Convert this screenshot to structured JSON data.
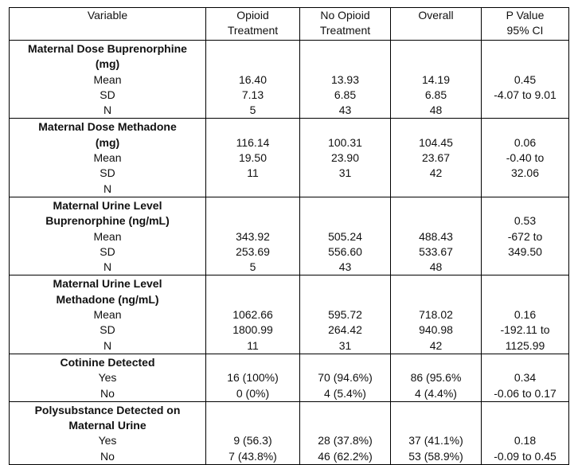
{
  "header": {
    "variable": "Variable",
    "opioid": [
      "Opioid",
      "Treatment"
    ],
    "no_opioid": [
      "No Opioid",
      "Treatment"
    ],
    "overall": [
      "Overall"
    ],
    "pvalue": [
      "P Value",
      "95% CI"
    ]
  },
  "groups": [
    {
      "title": [
        "Maternal Dose Buprenorphine",
        "(mg)"
      ],
      "labels": [
        "",
        "",
        "Mean",
        "SD",
        "N"
      ],
      "opioid": [
        "",
        "",
        "16.40",
        "7.13",
        "5"
      ],
      "no_opioid": [
        "",
        "",
        "13.93",
        "6.85",
        "43"
      ],
      "overall": [
        "",
        "",
        "14.19",
        "6.85",
        "48"
      ],
      "pvalue": [
        "",
        "",
        "0.45",
        "-4.07 to 9.01",
        ""
      ]
    },
    {
      "title": [
        "Maternal Dose Methadone",
        "(mg)"
      ],
      "labels": [
        "",
        "",
        "Mean",
        "SD",
        "N"
      ],
      "opioid": [
        "",
        "116.14",
        "19.50",
        "11",
        ""
      ],
      "no_opioid": [
        "",
        "100.31",
        "23.90",
        "31",
        ""
      ],
      "overall": [
        "",
        "104.45",
        "23.67",
        "42",
        ""
      ],
      "pvalue": [
        "",
        "0.06",
        "-0.40 to",
        "32.06",
        ""
      ]
    },
    {
      "title": [
        "Maternal Urine Level",
        "Buprenorphine (ng/mL)"
      ],
      "labels": [
        "",
        "",
        "Mean",
        "SD",
        "N"
      ],
      "opioid": [
        "",
        "",
        "343.92",
        "253.69",
        "5"
      ],
      "no_opioid": [
        "",
        "",
        "505.24",
        "556.60",
        "43"
      ],
      "overall": [
        "",
        "",
        "488.43",
        "533.67",
        "48"
      ],
      "pvalue": [
        "",
        "0.53",
        "-672 to",
        "349.50",
        ""
      ]
    },
    {
      "title": [
        "Maternal Urine Level",
        "Methadone (ng/mL)"
      ],
      "labels": [
        "",
        "",
        "Mean",
        "SD",
        "N"
      ],
      "opioid": [
        "",
        "",
        "1062.66",
        "1800.99",
        "11"
      ],
      "no_opioid": [
        "",
        "",
        "595.72",
        "264.42",
        "31"
      ],
      "overall": [
        "",
        "",
        "718.02",
        "940.98",
        "42"
      ],
      "pvalue": [
        "",
        "",
        "0.16",
        "-192.11 to",
        "1125.99"
      ]
    },
    {
      "title": [
        "Cotinine Detected"
      ],
      "labels": [
        "",
        "Yes",
        "No"
      ],
      "opioid": [
        "",
        "16 (100%)",
        "0 (0%)"
      ],
      "no_opioid": [
        "",
        "70 (94.6%)",
        "4 (5.4%)"
      ],
      "overall": [
        "",
        "86 (95.6%",
        "4 (4.4%)"
      ],
      "pvalue": [
        "",
        "0.34",
        "-0.06 to 0.17"
      ]
    },
    {
      "title": [
        "Polysubstance Detected on",
        "Maternal Urine"
      ],
      "labels": [
        "",
        "",
        "Yes",
        "No"
      ],
      "opioid": [
        "",
        "",
        "9 (56.3)",
        "7 (43.8%)"
      ],
      "no_opioid": [
        "",
        "",
        "28 (37.8%)",
        "46 (62.2%)"
      ],
      "overall": [
        "",
        "",
        "37 (41.1%)",
        "53 (58.9%)"
      ],
      "pvalue": [
        "",
        "",
        "0.18",
        "-0.09 to 0.45"
      ]
    }
  ]
}
